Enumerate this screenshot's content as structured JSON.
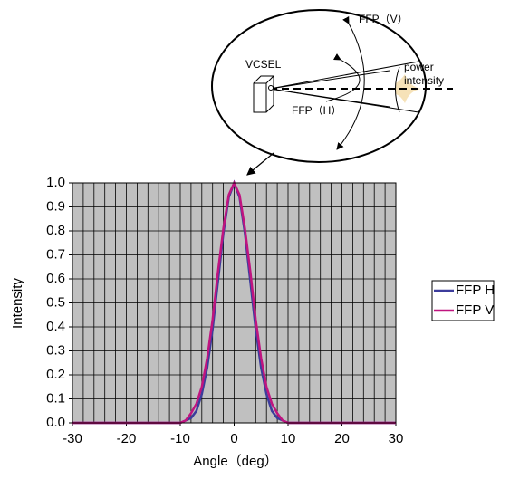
{
  "chart_data": {
    "type": "line",
    "x_label": "Angle（deg）",
    "y_label": "Intensity",
    "x": [
      -30,
      -25,
      -20,
      -15,
      -12,
      -11,
      -10,
      -9,
      -8,
      -7,
      -6,
      -5,
      -4,
      -3,
      -2,
      -1,
      0,
      1,
      2,
      3,
      4,
      5,
      6,
      7,
      8,
      9,
      10,
      11,
      12,
      15,
      20,
      25,
      30
    ],
    "series": [
      {
        "name": "FFP H",
        "color": "#3c3c9c",
        "values": [
          0,
          0,
          0,
          0,
          0,
          0,
          0,
          0.01,
          0.02,
          0.05,
          0.12,
          0.23,
          0.39,
          0.59,
          0.79,
          0.94,
          1.0,
          0.94,
          0.79,
          0.59,
          0.39,
          0.23,
          0.12,
          0.05,
          0.02,
          0.01,
          0,
          0,
          0,
          0,
          0,
          0,
          0
        ]
      },
      {
        "name": "FFP V",
        "color": "#c0147f",
        "values": [
          0,
          0,
          0,
          0,
          0,
          0,
          0,
          0.01,
          0.04,
          0.08,
          0.15,
          0.27,
          0.43,
          0.63,
          0.81,
          0.95,
          1.0,
          0.95,
          0.81,
          0.63,
          0.43,
          0.27,
          0.15,
          0.08,
          0.04,
          0.01,
          0,
          0,
          0,
          0,
          0,
          0,
          0
        ]
      }
    ],
    "xlim": [
      -30,
      30
    ],
    "xticks": [
      -30,
      -20,
      -10,
      0,
      10,
      20,
      30
    ],
    "ylim": [
      0,
      1
    ],
    "yticks": [
      {
        "value": 0,
        "label": "0.0"
      },
      {
        "value": 0.1,
        "label": "0.1"
      },
      {
        "value": 0.2,
        "label": "0.2"
      },
      {
        "value": 0.3,
        "label": "0.3"
      },
      {
        "value": 0.4,
        "label": "0.4"
      },
      {
        "value": 0.5,
        "label": "0.5"
      },
      {
        "value": 0.6,
        "label": "0.6"
      },
      {
        "value": 0.7,
        "label": "0.7"
      },
      {
        "value": 0.8,
        "label": "0.8"
      },
      {
        "value": 0.9,
        "label": "0.9"
      },
      {
        "value": 1,
        "label": "1.0"
      }
    ],
    "grid": true,
    "legend": "right",
    "plot_background": "#c0c0c0"
  },
  "diagram": {
    "ffp_v": "FFP（V）",
    "power": "power",
    "intensity": "intensity",
    "vcsel": "VCSEL",
    "ffp_h": "FFP（H）"
  }
}
